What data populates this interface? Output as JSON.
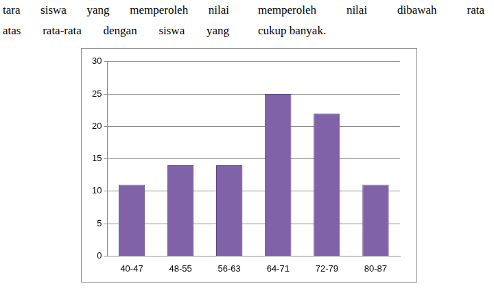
{
  "text_columns": [
    [
      "tara siswa yang memperoleh nilai",
      "atas rata-rata dengan siswa yang"
    ],
    [
      "memperoleh nilai dibawah rata",
      "cukup banyak."
    ]
  ],
  "chart_data": {
    "type": "bar",
    "categories": [
      "40-47",
      "48-55",
      "56-63",
      "64-71",
      "72-79",
      "80-87"
    ],
    "values": [
      11,
      14,
      14,
      25,
      22,
      11
    ],
    "color": "#7f62a8",
    "ylim": [
      0,
      30
    ],
    "yticks": [
      0,
      5,
      10,
      15,
      20,
      25,
      30
    ],
    "grid": true
  }
}
